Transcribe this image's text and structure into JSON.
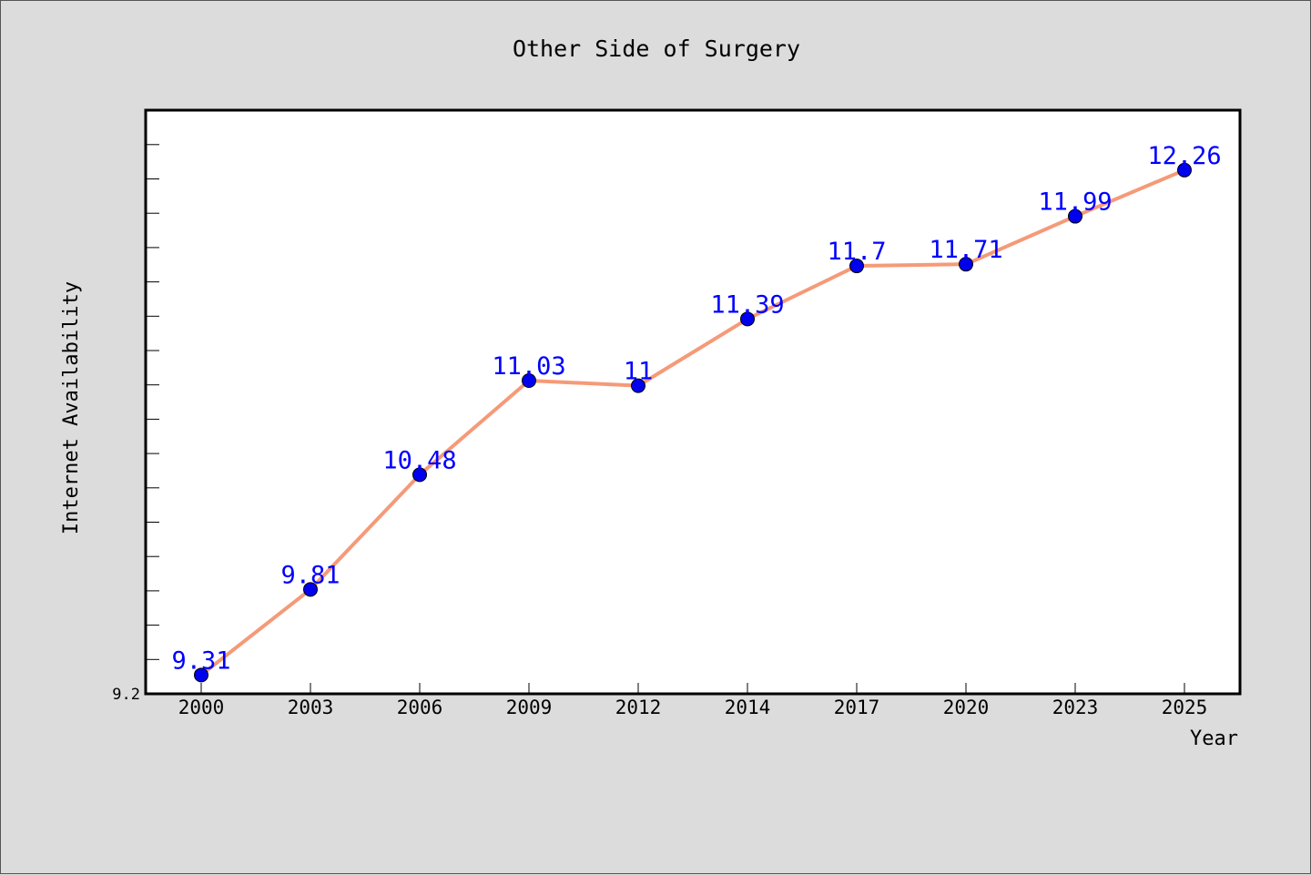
{
  "chart_data": {
    "type": "line",
    "title": "Other Side of Surgery",
    "xlabel": "Year",
    "ylabel": "Internet Availability",
    "categories": [
      "2000",
      "2003",
      "2006",
      "2009",
      "2012",
      "2014",
      "2017",
      "2020",
      "2023",
      "2025"
    ],
    "series": [
      {
        "values": [
          9.31,
          9.81,
          10.48,
          11.03,
          11,
          11.39,
          11.7,
          11.71,
          11.99,
          12.26
        ],
        "labels": [
          "9.31",
          "9.81",
          "10.48",
          "11.03",
          "11",
          "11.39",
          "11.7",
          "11.71",
          "11.99",
          "12.26"
        ]
      }
    ],
    "ylim": [
      9.2,
      12.61
    ],
    "yticks_labeled": [
      "9.2"
    ],
    "grid": false,
    "line_color": "#f59a78",
    "marker_color": "#0000ee",
    "label_color": "#0000ff"
  }
}
